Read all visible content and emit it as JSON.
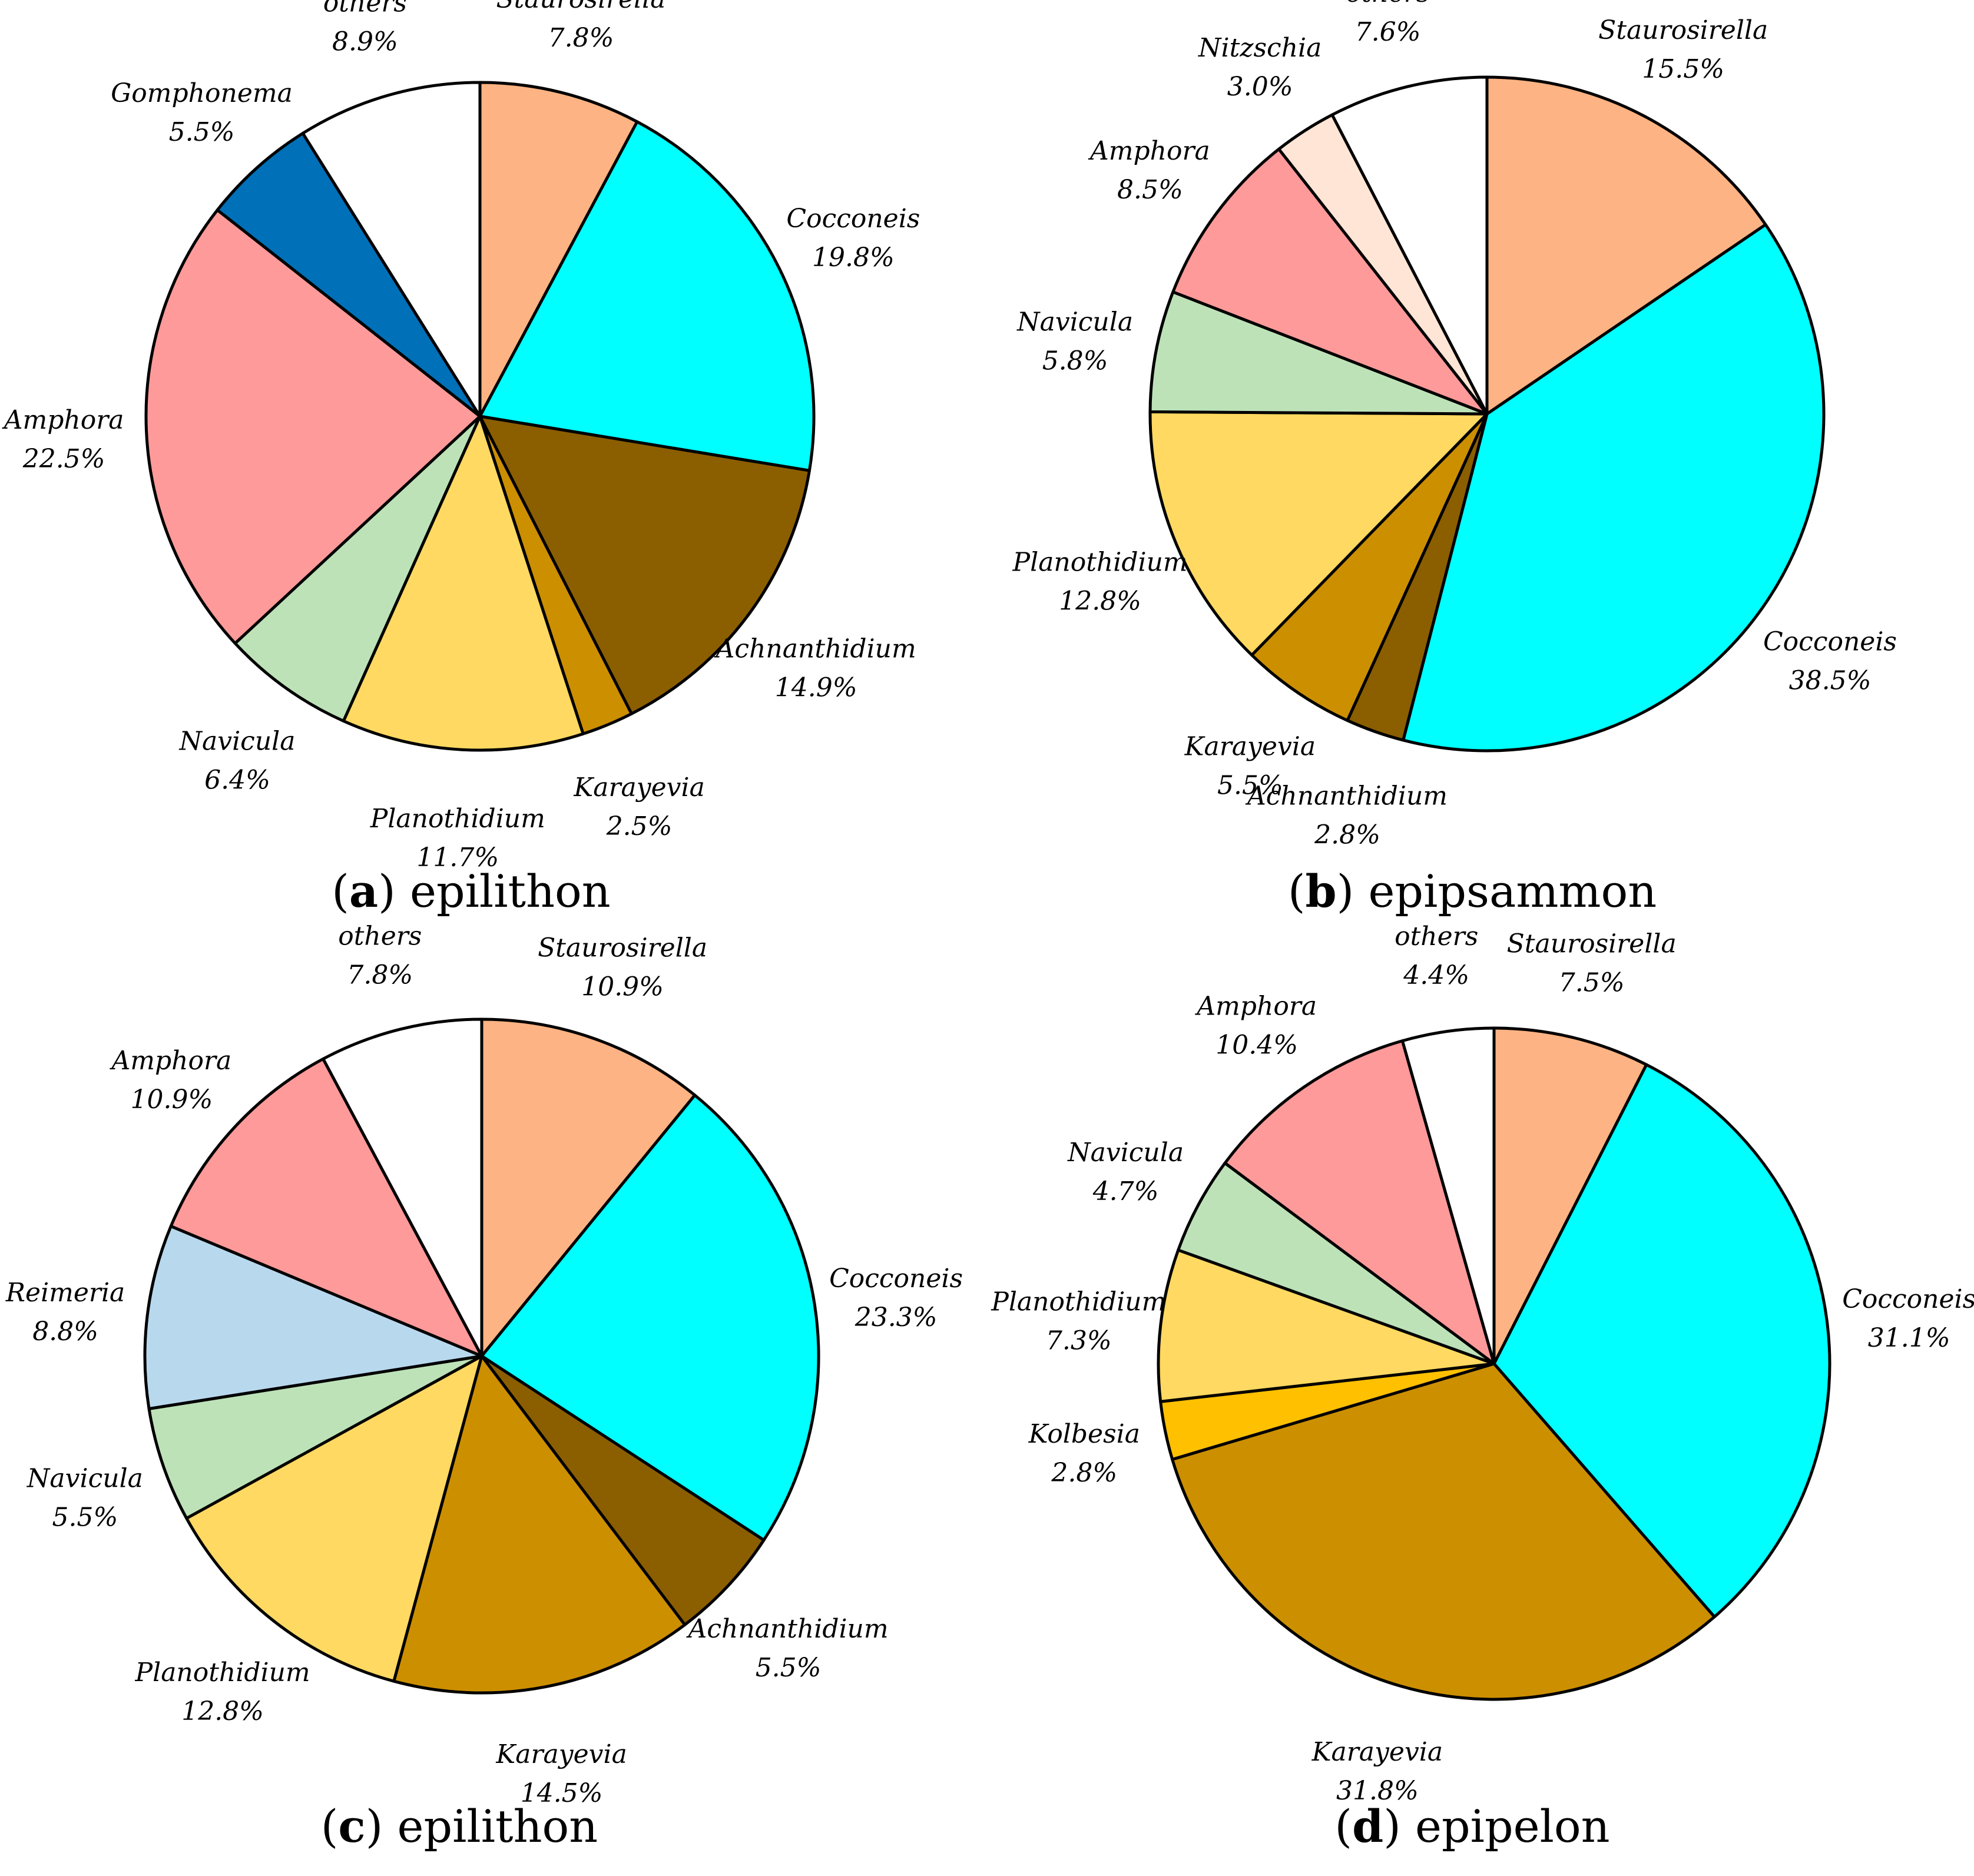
{
  "chart_data": [
    {
      "type": "pie",
      "caption": {
        "letter": "a",
        "text": "epilithon"
      },
      "slices": [
        {
          "label": "Staurosirella",
          "pct_text": "7.8%",
          "value": 7.8,
          "color": "#FDB383"
        },
        {
          "label": "Cocconeis",
          "pct_text": "19.8%",
          "value": 19.8,
          "color": "#00FFFF"
        },
        {
          "label": "Achnanthidium",
          "pct_text": "14.9%",
          "value": 14.9,
          "color": "#8B5E00"
        },
        {
          "label": "Karayevia",
          "pct_text": "2.5%",
          "value": 2.5,
          "color": "#CC8F00"
        },
        {
          "label": "Planothidium",
          "pct_text": "11.7%",
          "value": 11.7,
          "color": "#FFD961"
        },
        {
          "label": "Navicula",
          "pct_text": "6.4%",
          "value": 6.4,
          "color": "#BDE2B8"
        },
        {
          "label": "Amphora",
          "pct_text": "22.5%",
          "value": 22.5,
          "color": "#FF9A9A"
        },
        {
          "label": "Gomphonema",
          "pct_text": "5.5%",
          "value": 5.5,
          "color": "#0070B8"
        },
        {
          "label": "others",
          "pct_text": "8.9%",
          "value": 8.9,
          "color": "#FFFFFF"
        }
      ]
    },
    {
      "type": "pie",
      "caption": {
        "letter": "b",
        "text": "epipsammon"
      },
      "slices": [
        {
          "label": "Staurosirella",
          "pct_text": "15.5%",
          "value": 15.5,
          "color": "#FDB383"
        },
        {
          "label": "Cocconeis",
          "pct_text": "38.5%",
          "value": 38.5,
          "color": "#00FFFF"
        },
        {
          "label": "Achnanthidium",
          "pct_text": "2.8%",
          "value": 2.8,
          "color": "#8B5E00"
        },
        {
          "label": "Karayevia",
          "pct_text": "5.5%",
          "value": 5.5,
          "color": "#CC8F00"
        },
        {
          "label": "Planothidium",
          "pct_text": "12.8%",
          "value": 12.8,
          "color": "#FFD961"
        },
        {
          "label": "Navicula",
          "pct_text": "5.8%",
          "value": 5.8,
          "color": "#BDE2B8"
        },
        {
          "label": "Amphora",
          "pct_text": "8.5%",
          "value": 8.5,
          "color": "#FF9A9A"
        },
        {
          "label": "Nitzschia",
          "pct_text": "3.0%",
          "value": 3.0,
          "color": "#FFE5D6"
        },
        {
          "label": "others",
          "pct_text": "7.6%",
          "value": 7.6,
          "color": "#FFFFFF"
        }
      ]
    },
    {
      "type": "pie",
      "caption": {
        "letter": "c",
        "text": "epilithon"
      },
      "slices": [
        {
          "label": "Staurosirella",
          "pct_text": "10.9%",
          "value": 10.9,
          "color": "#FDB383"
        },
        {
          "label": "Cocconeis",
          "pct_text": "23.3%",
          "value": 23.3,
          "color": "#00FFFF"
        },
        {
          "label": "Achnanthidium",
          "pct_text": "5.5%",
          "value": 5.5,
          "color": "#8B5E00"
        },
        {
          "label": "Karayevia",
          "pct_text": "14.5%",
          "value": 14.5,
          "color": "#CC8F00"
        },
        {
          "label": "Planothidium",
          "pct_text": "12.8%",
          "value": 12.8,
          "color": "#FFD961"
        },
        {
          "label": "Navicula",
          "pct_text": "5.5%",
          "value": 5.5,
          "color": "#BDE2B8"
        },
        {
          "label": "Reimeria",
          "pct_text": "8.8%",
          "value": 8.8,
          "color": "#B8D8EE"
        },
        {
          "label": "Amphora",
          "pct_text": "10.9%",
          "value": 10.9,
          "color": "#FF9A9A"
        },
        {
          "label": "others",
          "pct_text": "7.8%",
          "value": 7.8,
          "color": "#FFFFFF"
        }
      ]
    },
    {
      "type": "pie",
      "caption": {
        "letter": "d",
        "text": "epipelon"
      },
      "slices": [
        {
          "label": "Staurosirella",
          "pct_text": "7.5%",
          "value": 7.5,
          "color": "#FDB383"
        },
        {
          "label": "Cocconeis",
          "pct_text": "31.1%",
          "value": 31.1,
          "color": "#00FFFF"
        },
        {
          "label": "Karayevia",
          "pct_text": "31.8%",
          "value": 31.8,
          "color": "#CC8F00"
        },
        {
          "label": "Kolbesia",
          "pct_text": "2.8%",
          "value": 2.8,
          "color": "#FFC000"
        },
        {
          "label": "Planothidium",
          "pct_text": "7.3%",
          "value": 7.3,
          "color": "#FFD961"
        },
        {
          "label": "Navicula",
          "pct_text": "4.7%",
          "value": 4.7,
          "color": "#BDE2B8"
        },
        {
          "label": "Amphora",
          "pct_text": "10.4%",
          "value": 10.4,
          "color": "#FF9A9A"
        },
        {
          "label": "others",
          "pct_text": "4.4%",
          "value": 4.4,
          "color": "#FFFFFF"
        }
      ]
    }
  ]
}
